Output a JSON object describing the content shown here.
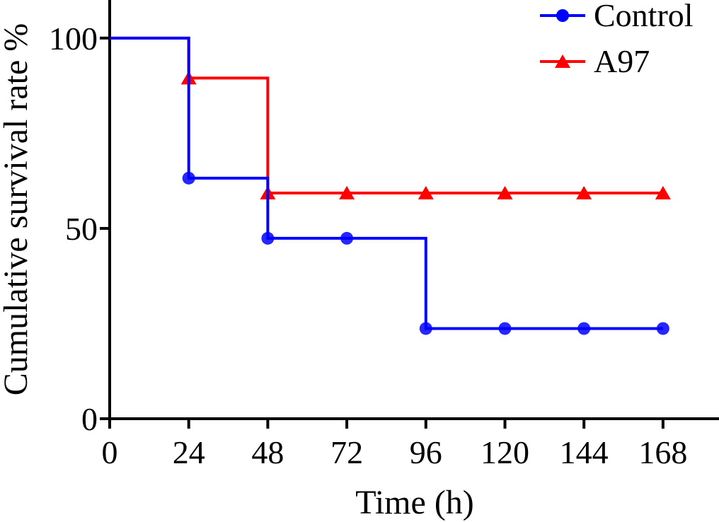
{
  "chart_data": {
    "type": "line",
    "step": true,
    "xlabel": "Time (h)",
    "ylabel": "Cumulative survival rate %",
    "xlim": [
      0,
      185
    ],
    "ylim": [
      0,
      110
    ],
    "x_ticks": [
      0,
      24,
      48,
      72,
      96,
      120,
      144,
      168
    ],
    "y_ticks": [
      0,
      50,
      100
    ],
    "grid": false,
    "legend_position": "top-right",
    "series": [
      {
        "name": "Control",
        "color": "#0000ff",
        "marker": "circle",
        "x": [
          24,
          48,
          72,
          96,
          120,
          144,
          168
        ],
        "y": [
          63.2,
          47.4,
          47.4,
          23.7,
          23.7,
          23.7,
          23.7
        ],
        "start": [
          0,
          100
        ]
      },
      {
        "name": "A97",
        "color": "#ff0000",
        "marker": "triangle",
        "x": [
          24,
          48,
          72,
          96,
          120,
          144,
          168
        ],
        "y": [
          89.5,
          59.3,
          59.3,
          59.3,
          59.3,
          59.3,
          59.3
        ],
        "start": [
          0,
          100
        ]
      }
    ]
  }
}
